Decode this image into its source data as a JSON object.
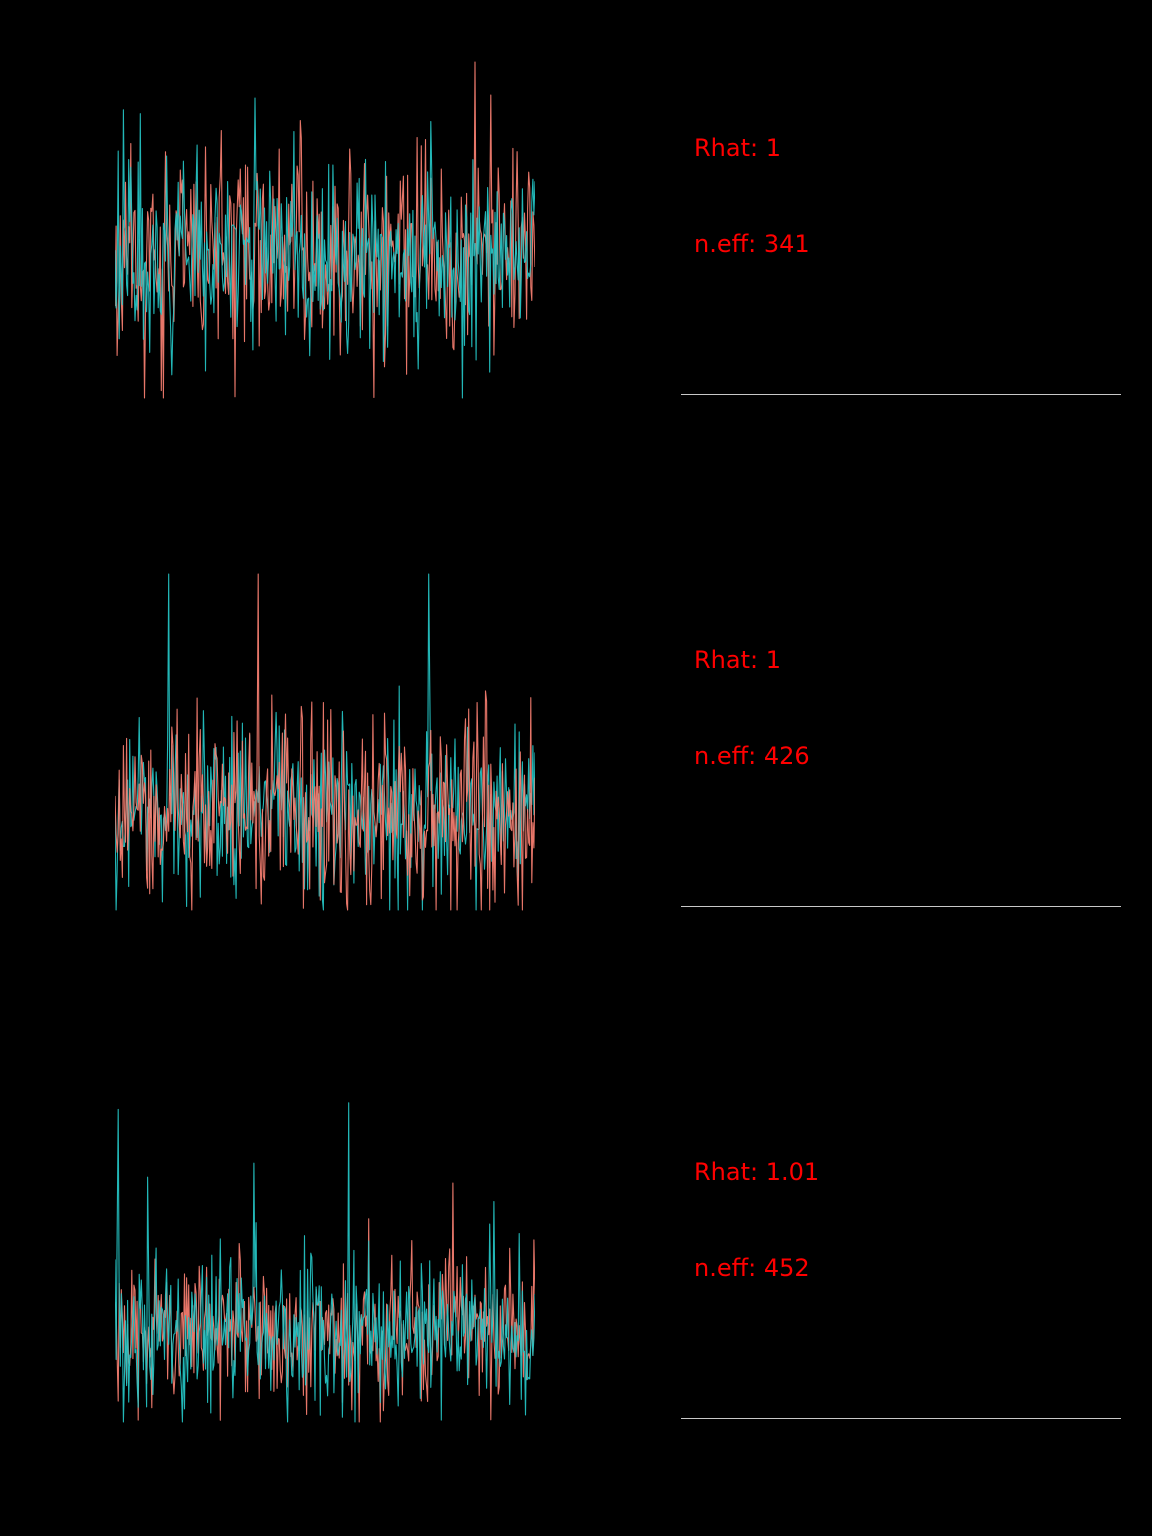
{
  "figure": {
    "kind": "mcmc-traceplot-density-diagnostics",
    "background_color": "#000000",
    "annotation_text_color": "#ff0000",
    "density_axis_color": "#c8c8c8"
  },
  "panels": [
    {
      "rhat_label": "Rhat: 1",
      "neff_label": "n.eff: 341"
    },
    {
      "rhat_label": "Rhat: 1",
      "neff_label": "n.eff: 426"
    },
    {
      "rhat_label": "Rhat: 1.01",
      "neff_label": "n.eff: 452"
    }
  ],
  "chart_data": [
    {
      "type": "line",
      "subtype": "mcmc-trace",
      "title": "",
      "xlabel": "",
      "ylabel": "",
      "n_points": 400,
      "legend": "none",
      "grid": false,
      "annotations": {
        "rhat": 1,
        "neff": 341
      },
      "render": {
        "center": 196
      },
      "series": [
        {
          "name": "chain-1",
          "color": "#FA8072",
          "seed": 11,
          "sd": 46,
          "spike_prob": 0.015,
          "spike_dir": 0
        },
        {
          "name": "chain-2",
          "color": "#25C7C7",
          "seed": 22,
          "sd": 46,
          "spike_prob": 0.015,
          "spike_dir": 0
        }
      ]
    },
    {
      "type": "line",
      "subtype": "mcmc-trace",
      "title": "",
      "xlabel": "",
      "ylabel": "",
      "n_points": 400,
      "legend": "none",
      "grid": false,
      "annotations": {
        "rhat": 1,
        "neff": 426
      },
      "render": {
        "center": 242
      },
      "series": [
        {
          "name": "chain-2",
          "color": "#25C7C7",
          "seed": 33,
          "sd": 44,
          "spike_prob": 0.015,
          "spike_dir": 0
        },
        {
          "name": "chain-1",
          "color": "#FA8072",
          "seed": 44,
          "sd": 50,
          "spike_prob": 0.018,
          "spike_dir": 0
        }
      ]
    },
    {
      "type": "line",
      "subtype": "mcmc-trace",
      "title": "",
      "xlabel": "",
      "ylabel": "",
      "n_points": 400,
      "legend": "none",
      "grid": false,
      "annotations": {
        "rhat": 1.01,
        "neff": 452
      },
      "render": {
        "center": 252
      },
      "series": [
        {
          "name": "chain-1",
          "color": "#FA8072",
          "seed": 55,
          "sd": 36,
          "spike_prob": 0.02,
          "spike_dir": -1
        },
        {
          "name": "chain-2",
          "color": "#25C7C7",
          "seed": 66,
          "sd": 38,
          "spike_prob": 0.02,
          "spike_dir": -1
        }
      ]
    }
  ]
}
